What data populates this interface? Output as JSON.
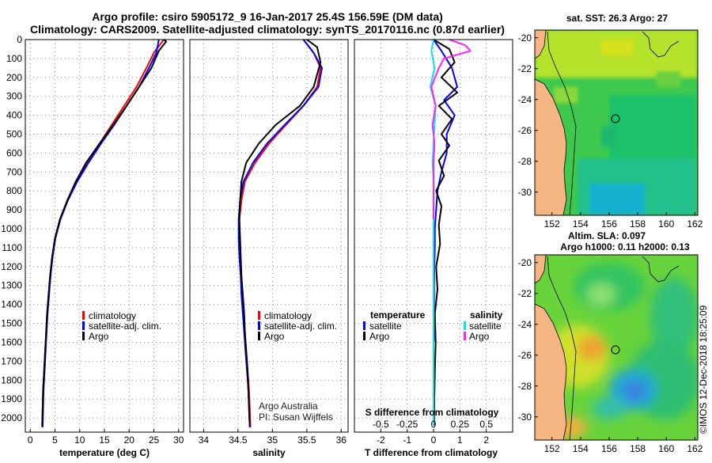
{
  "header": {
    "title_line1": "Argo profile: csiro 5905172_9 16-Jan-2017 25.4S 156.59E (DM data)",
    "title_line2": "Climatology: CARS2009. Satellite-adjusted climatology: synTS_20170116.nc (0.87d earlier)"
  },
  "colors": {
    "climatology": "#ff0000",
    "satellite": "#0000ff",
    "argo": "#000000",
    "sal_satellite": "#00e5ee",
    "sal_argo": "#ff22ff"
  },
  "chart_data": [
    {
      "type": "line",
      "name": "temperature-profile",
      "xlabel": "temperature (deg C)",
      "ylabel": "",
      "xlim": [
        -1,
        31
      ],
      "ylim": [
        2075,
        0
      ],
      "x_ticks": [
        0,
        5,
        10,
        15,
        20,
        25,
        30
      ],
      "y_ticks": [
        0,
        100,
        200,
        300,
        400,
        500,
        600,
        700,
        800,
        900,
        1000,
        1100,
        1200,
        1300,
        1400,
        1500,
        1600,
        1700,
        1800,
        1900,
        2000
      ],
      "legend": [
        "climatology",
        "satellite-adj. clim.",
        "Argo"
      ],
      "series": [
        {
          "name": "climatology",
          "color_key": "climatology",
          "points": [
            [
              27,
              0
            ],
            [
              25,
              70
            ],
            [
              23.5,
              150
            ],
            [
              21.5,
              250
            ],
            [
              19,
              350
            ],
            [
              16.5,
              450
            ],
            [
              14,
              550
            ],
            [
              11.5,
              650
            ],
            [
              9.3,
              750
            ],
            [
              7.5,
              850
            ],
            [
              6,
              950
            ],
            [
              5,
              1050
            ],
            [
              4.5,
              1150
            ],
            [
              4,
              1250
            ],
            [
              3.7,
              1350
            ],
            [
              3.4,
              1450
            ],
            [
              3.2,
              1550
            ],
            [
              3,
              1650
            ],
            [
              2.8,
              1750
            ],
            [
              2.6,
              1850
            ],
            [
              2.5,
              1950
            ],
            [
              2.4,
              2050
            ]
          ]
        },
        {
          "name": "satellite-adj. clim.",
          "color_key": "satellite",
          "points": [
            [
              26,
              0
            ],
            [
              25.5,
              70
            ],
            [
              24,
              150
            ],
            [
              22,
              250
            ],
            [
              19.5,
              350
            ],
            [
              17,
              450
            ],
            [
              14.3,
              550
            ],
            [
              11.8,
              650
            ],
            [
              9.5,
              750
            ],
            [
              7.6,
              850
            ],
            [
              6.1,
              950
            ],
            [
              5.1,
              1050
            ],
            [
              4.5,
              1150
            ],
            [
              4.1,
              1250
            ],
            [
              3.8,
              1350
            ],
            [
              3.5,
              1450
            ],
            [
              3.3,
              1550
            ],
            [
              3.1,
              1650
            ],
            [
              2.9,
              1750
            ],
            [
              2.7,
              1850
            ],
            [
              2.6,
              1950
            ],
            [
              2.5,
              2050
            ]
          ]
        },
        {
          "name": "Argo",
          "color_key": "argo",
          "points": [
            [
              27,
              0
            ],
            [
              27.5,
              10
            ],
            [
              26,
              60
            ],
            [
              24.5,
              150
            ],
            [
              22,
              250
            ],
            [
              19.5,
              350
            ],
            [
              16.8,
              450
            ],
            [
              14,
              550
            ],
            [
              11.3,
              650
            ],
            [
              9.2,
              750
            ],
            [
              7.5,
              850
            ],
            [
              6,
              950
            ],
            [
              5,
              1050
            ],
            [
              4.4,
              1150
            ],
            [
              4,
              1250
            ],
            [
              3.7,
              1350
            ],
            [
              3.4,
              1450
            ],
            [
              3.2,
              1550
            ],
            [
              3,
              1650
            ],
            [
              2.8,
              1750
            ],
            [
              2.6,
              1850
            ],
            [
              2.5,
              1950
            ],
            [
              2.4,
              2040
            ]
          ]
        }
      ]
    },
    {
      "type": "line",
      "name": "salinity-profile",
      "xlabel": "salinity",
      "ylabel": "",
      "xlim": [
        33.8,
        36.1
      ],
      "ylim": [
        2075,
        0
      ],
      "x_ticks": [
        34,
        34.5,
        35,
        35.5,
        36
      ],
      "legend": [
        "climatology",
        "satellite-adj. clim.",
        "Argo"
      ],
      "annotation": [
        "Argo Australia",
        "PI: Susan Wijffels"
      ],
      "series": [
        {
          "name": "climatology",
          "color_key": "climatology",
          "points": [
            [
              35.45,
              0
            ],
            [
              35.6,
              70
            ],
            [
              35.7,
              150
            ],
            [
              35.65,
              250
            ],
            [
              35.45,
              350
            ],
            [
              35.2,
              450
            ],
            [
              34.95,
              550
            ],
            [
              34.75,
              650
            ],
            [
              34.6,
              750
            ],
            [
              34.55,
              850
            ],
            [
              34.52,
              950
            ],
            [
              34.52,
              1050
            ],
            [
              34.53,
              1150
            ],
            [
              34.55,
              1250
            ],
            [
              34.56,
              1350
            ],
            [
              34.58,
              1450
            ],
            [
              34.6,
              1550
            ],
            [
              34.62,
              1650
            ],
            [
              34.64,
              1750
            ],
            [
              34.66,
              1850
            ],
            [
              34.67,
              1950
            ],
            [
              34.68,
              2050
            ]
          ]
        },
        {
          "name": "satellite-adj. clim.",
          "color_key": "satellite",
          "points": [
            [
              35.45,
              0
            ],
            [
              35.6,
              70
            ],
            [
              35.72,
              150
            ],
            [
              35.67,
              250
            ],
            [
              35.45,
              350
            ],
            [
              35.18,
              450
            ],
            [
              34.92,
              550
            ],
            [
              34.72,
              650
            ],
            [
              34.58,
              750
            ],
            [
              34.53,
              850
            ],
            [
              34.51,
              950
            ],
            [
              34.51,
              1050
            ],
            [
              34.52,
              1150
            ],
            [
              34.54,
              1250
            ],
            [
              34.55,
              1350
            ],
            [
              34.57,
              1450
            ],
            [
              34.59,
              1550
            ],
            [
              34.61,
              1650
            ],
            [
              34.63,
              1750
            ],
            [
              34.65,
              1850
            ],
            [
              34.66,
              1950
            ],
            [
              34.67,
              2050
            ]
          ]
        },
        {
          "name": "Argo",
          "color_key": "argo",
          "points": [
            [
              35.5,
              0
            ],
            [
              35.65,
              40
            ],
            [
              35.7,
              120
            ],
            [
              35.6,
              250
            ],
            [
              35.4,
              350
            ],
            [
              35.05,
              450
            ],
            [
              34.8,
              550
            ],
            [
              34.62,
              650
            ],
            [
              34.55,
              750
            ],
            [
              34.53,
              850
            ],
            [
              34.52,
              950
            ],
            [
              34.53,
              1050
            ],
            [
              34.54,
              1150
            ],
            [
              34.55,
              1250
            ],
            [
              34.57,
              1350
            ],
            [
              34.59,
              1450
            ],
            [
              34.6,
              1550
            ],
            [
              34.62,
              1650
            ],
            [
              34.64,
              1750
            ],
            [
              34.65,
              1850
            ],
            [
              34.66,
              1950
            ],
            [
              34.67,
              2040
            ]
          ]
        }
      ]
    },
    {
      "type": "line",
      "name": "difference-profile",
      "xlabel": "T difference from climatology",
      "x2label": "S difference from climatology",
      "ylabel": "",
      "xlim": [
        -3,
        3
      ],
      "x2lim": [
        -0.75,
        0.75
      ],
      "ylim": [
        2075,
        0
      ],
      "x_ticks": [
        -2,
        -1,
        0,
        1,
        2
      ],
      "x2_ticks": [
        -0.5,
        -0.25,
        0,
        0.25,
        0.5
      ],
      "x2_tick_labels": [
        "-0.5",
        "-0.25",
        "0",
        "0.25",
        "0.5"
      ],
      "legend_temperature": [
        "temperature",
        "satellite",
        "Argo"
      ],
      "legend_salinity": [
        "salinity",
        "satellite",
        "Argo"
      ],
      "series": [
        {
          "name": "T satellite",
          "axis": "T",
          "color_key": "satellite",
          "points": [
            [
              0,
              0
            ],
            [
              0.3,
              60
            ],
            [
              0.7,
              150
            ],
            [
              0.9,
              250
            ],
            [
              0.4,
              320
            ],
            [
              0.8,
              400
            ],
            [
              0.5,
              500
            ],
            [
              0.5,
              600
            ],
            [
              0.3,
              700
            ],
            [
              0.15,
              800
            ],
            [
              0.1,
              900
            ],
            [
              0.05,
              1000
            ],
            [
              0.05,
              1100
            ],
            [
              0.03,
              1200
            ],
            [
              0.02,
              1300
            ],
            [
              0.02,
              1400
            ],
            [
              0.02,
              1500
            ],
            [
              0.01,
              1600
            ]
          ]
        },
        {
          "name": "T Argo",
          "axis": "T",
          "color_key": "argo",
          "points": [
            [
              0,
              0
            ],
            [
              0.6,
              50
            ],
            [
              0.8,
              120
            ],
            [
              0.3,
              200
            ],
            [
              0.9,
              280
            ],
            [
              0.2,
              350
            ],
            [
              0.7,
              420
            ],
            [
              0.3,
              500
            ],
            [
              0.6,
              560
            ],
            [
              0.2,
              640
            ],
            [
              0.4,
              720
            ],
            [
              0.1,
              800
            ],
            [
              0.3,
              880
            ],
            [
              0.2,
              980
            ],
            [
              0.25,
              1080
            ],
            [
              0.1,
              1200
            ],
            [
              0.15,
              1320
            ],
            [
              0.05,
              1450
            ],
            [
              0.08,
              1600
            ],
            [
              0.05,
              1750
            ],
            [
              0.03,
              1900
            ],
            [
              0.02,
              2040
            ]
          ]
        },
        {
          "name": "S satellite",
          "axis": "S",
          "color_key": "sal_satellite",
          "points": [
            [
              0,
              0
            ],
            [
              -0.02,
              60
            ],
            [
              0.01,
              150
            ],
            [
              -0.03,
              250
            ],
            [
              0.02,
              350
            ],
            [
              0.01,
              450
            ],
            [
              0,
              550
            ],
            [
              -0.01,
              650
            ],
            [
              0,
              750
            ],
            [
              0,
              850
            ],
            [
              0,
              950
            ],
            [
              0,
              1050
            ],
            [
              0,
              1150
            ],
            [
              0,
              1250
            ],
            [
              0,
              1350
            ],
            [
              0,
              1450
            ],
            [
              0,
              1550
            ],
            [
              0,
              1650
            ],
            [
              0,
              1750
            ],
            [
              0,
              1850
            ],
            [
              0,
              1950
            ],
            [
              0,
              2040
            ]
          ]
        },
        {
          "name": "S Argo",
          "axis": "S",
          "color_key": "sal_argo",
          "points": [
            [
              0.15,
              0
            ],
            [
              0.3,
              30
            ],
            [
              0.35,
              60
            ],
            [
              0.1,
              100
            ],
            [
              0.05,
              150
            ],
            [
              -0.02,
              250
            ],
            [
              0.02,
              350
            ],
            [
              -0.01,
              450
            ],
            [
              0.01,
              550
            ],
            [
              0,
              650
            ],
            [
              0,
              750
            ],
            [
              0,
              850
            ],
            [
              0,
              950
            ]
          ]
        }
      ]
    },
    {
      "type": "heatmap",
      "name": "sst-map",
      "title": "sat. SST: 26.3 Argo: 27",
      "xlim": [
        150.8,
        162.2
      ],
      "ylim": [
        -31.5,
        -19.5
      ],
      "x_ticks": [
        152,
        154,
        156,
        158,
        160,
        162
      ],
      "y_ticks": [
        -20,
        -22,
        -24,
        -26,
        -28,
        -30
      ],
      "argo_position": [
        156.59,
        -25.4
      ]
    },
    {
      "type": "heatmap",
      "name": "sla-map",
      "title": "Altim. SLA: 0.097",
      "subtitle": "Argo h1000: 0.11 h2000: 0.13",
      "xlim": [
        150.8,
        162.2
      ],
      "ylim": [
        -31.5,
        -19.5
      ],
      "x_ticks": [
        152,
        154,
        156,
        158,
        160,
        162
      ],
      "y_ticks": [
        -20,
        -22,
        -24,
        -26,
        -28,
        -30
      ],
      "argo_position": [
        156.59,
        -25.4
      ]
    }
  ],
  "footer": {
    "credit": "©IMOS 12-Dec-2018 18:25:09"
  }
}
